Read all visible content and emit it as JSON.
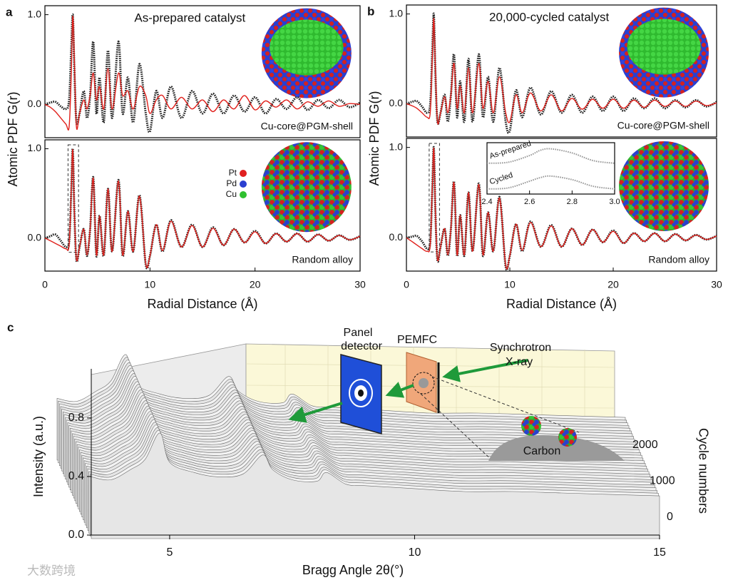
{
  "chart_data": [
    {
      "type": "line",
      "panel": "a",
      "title": "As-prepared catalyst",
      "annotation": "Cu-core@PGM-shell",
      "ylabel": "Atomic PDF G(r)",
      "x": [
        0,
        0.5,
        1,
        1.5,
        2,
        2.3,
        2.5,
        2.65,
        2.8,
        3.0,
        3.3,
        3.7,
        4.0,
        4.3,
        4.6,
        4.9,
        5.2,
        5.6,
        6.0,
        6.4,
        7.0,
        7.4,
        7.9,
        8.4,
        9.0,
        9.6,
        10.0,
        10.6,
        11.2,
        12,
        13,
        14,
        15,
        16,
        17,
        18,
        19,
        20,
        21,
        22,
        23,
        24,
        25,
        26,
        27,
        28,
        29,
        30
      ],
      "series": [
        {
          "color": "#222222",
          "marker": "circle",
          "values": [
            0,
            0.02,
            0.03,
            -0.02,
            -0.05,
            0.05,
            0.6,
            1.0,
            0.4,
            -0.2,
            -0.1,
            0.15,
            -0.15,
            0.1,
            0.7,
            -0.1,
            0.3,
            -0.2,
            0.6,
            -0.15,
            0.7,
            -0.1,
            0.3,
            -0.2,
            0.45,
            -0.1,
            -0.3,
            0.15,
            -0.15,
            0.2,
            -0.15,
            0.15,
            -0.1,
            0.12,
            -0.1,
            0.1,
            -0.08,
            0.08,
            -0.1,
            0.06,
            -0.05,
            0.08,
            -0.06,
            0.05,
            -0.04,
            0.05,
            -0.03,
            0.02
          ]
        },
        {
          "color": "#e0201b",
          "values": [
            0,
            -0.03,
            -0.08,
            -0.15,
            -0.22,
            -0.25,
            0.3,
            0.98,
            0.5,
            -0.25,
            -0.1,
            0.05,
            -0.05,
            0.1,
            0.35,
            0.05,
            0.2,
            -0.05,
            0.4,
            -0.05,
            0.35,
            0.1,
            0.15,
            -0.05,
            0.2,
            0.1,
            -0.1,
            0.05,
            0.1,
            -0.05,
            0.08,
            -0.05,
            0.05,
            -0.08,
            0.05,
            -0.05,
            0.1,
            -0.06,
            0.04,
            -0.03,
            0.05,
            -0.05,
            0.03,
            -0.02,
            0.04,
            -0.02,
            0.01,
            0
          ]
        }
      ],
      "xlim": [
        0,
        30
      ],
      "ylim": [
        -0.37,
        1.1
      ],
      "yticks": [
        {
          "value": 0,
          "label": "0.0"
        },
        {
          "value": 1,
          "label": "1.0"
        }
      ],
      "particle": "core-shell"
    },
    {
      "type": "line",
      "annotation": "Random alloy",
      "xlabel": "Radial Distance (Å)",
      "legend": [
        {
          "name": "Pt",
          "color": "#e02020"
        },
        {
          "name": "Pd",
          "color": "#2a3fd0"
        },
        {
          "name": "Cu",
          "color": "#2fc02f"
        }
      ],
      "x": [
        0,
        0.5,
        1,
        1.5,
        2,
        2.3,
        2.5,
        2.65,
        2.8,
        3.0,
        3.3,
        3.7,
        4.0,
        4.3,
        4.6,
        4.9,
        5.2,
        5.6,
        6.0,
        6.4,
        7.0,
        7.4,
        7.9,
        8.4,
        9.0,
        9.6,
        10.0,
        10.6,
        11.2,
        12,
        13,
        14,
        15,
        16,
        17,
        18,
        19,
        20,
        21,
        22,
        23,
        24,
        25,
        26,
        27,
        28,
        29,
        30
      ],
      "series": [
        {
          "color": "#222222",
          "marker": "circle",
          "values": [
            0,
            0.02,
            0.04,
            -0.03,
            -0.1,
            -0.05,
            0.5,
            1.0,
            0.3,
            -0.25,
            -0.1,
            0.1,
            -0.2,
            0.1,
            0.68,
            -0.2,
            0.25,
            -0.2,
            0.55,
            -0.15,
            0.65,
            -0.2,
            0.3,
            -0.15,
            0.48,
            -0.3,
            -0.2,
            0.15,
            -0.15,
            0.2,
            -0.1,
            0.15,
            -0.1,
            0.12,
            -0.08,
            0.1,
            -0.05,
            0.08,
            -0.06,
            0.05,
            -0.04,
            0.05,
            -0.04,
            0.04,
            -0.03,
            0.03,
            -0.02,
            0.02
          ]
        },
        {
          "color": "#e0201b",
          "values": [
            0,
            -0.03,
            -0.06,
            -0.09,
            -0.12,
            -0.08,
            0.5,
            0.99,
            0.3,
            -0.24,
            -0.1,
            0.1,
            -0.19,
            0.1,
            0.67,
            -0.19,
            0.25,
            -0.19,
            0.55,
            -0.15,
            0.64,
            -0.19,
            0.3,
            -0.15,
            0.47,
            -0.29,
            -0.2,
            0.15,
            -0.14,
            0.19,
            -0.1,
            0.14,
            -0.1,
            0.11,
            -0.08,
            0.1,
            -0.05,
            0.07,
            -0.06,
            0.05,
            -0.04,
            0.05,
            -0.04,
            0.04,
            -0.03,
            0.03,
            -0.02,
            0.02
          ]
        }
      ],
      "xlim": [
        0,
        30
      ],
      "ylim": [
        -0.37,
        1.1
      ],
      "xticks": [
        0,
        10,
        20,
        30
      ],
      "yticks": [
        {
          "value": 0,
          "label": "0.0"
        },
        {
          "value": 1,
          "label": "1.0"
        }
      ],
      "highlight": [
        2.2,
        3.2
      ],
      "particle": "alloy"
    },
    {
      "type": "line",
      "panel": "b",
      "title": "20,000-cycled catalyst",
      "annotation": "Cu-core@PGM-shell",
      "ylabel": "Atomic PDF G(r)",
      "x": [
        0,
        0.5,
        1,
        1.5,
        2,
        2.3,
        2.5,
        2.65,
        2.8,
        3.0,
        3.3,
        3.7,
        4.0,
        4.3,
        4.6,
        4.9,
        5.2,
        5.6,
        6.0,
        6.4,
        7.0,
        7.4,
        7.9,
        8.4,
        9.0,
        9.6,
        10.0,
        10.6,
        11.2,
        12,
        13,
        14,
        15,
        16,
        17,
        18,
        19,
        20,
        21,
        22,
        23,
        24,
        25,
        26,
        27,
        28,
        29,
        30
      ],
      "series": [
        {
          "color": "#222222",
          "marker": "circle",
          "values": [
            0,
            0.02,
            0.03,
            -0.03,
            -0.1,
            0,
            0.6,
            1.0,
            0.35,
            -0.2,
            -0.1,
            0.1,
            -0.2,
            0.1,
            0.55,
            -0.15,
            0.25,
            -0.2,
            0.5,
            -0.2,
            0.55,
            -0.15,
            0.3,
            -0.2,
            0.4,
            -0.2,
            -0.3,
            0.15,
            -0.15,
            0.18,
            -0.12,
            0.14,
            -0.1,
            0.1,
            -0.1,
            0.08,
            -0.08,
            0.08,
            -0.08,
            0.06,
            -0.05,
            0.06,
            -0.05,
            0.04,
            -0.04,
            0.04,
            -0.03,
            0.02
          ]
        },
        {
          "color": "#e0201b",
          "values": [
            0,
            -0.02,
            -0.05,
            -0.1,
            -0.15,
            -0.1,
            0.5,
            0.95,
            0.4,
            -0.2,
            -0.1,
            0.08,
            -0.1,
            0.1,
            0.45,
            -0.05,
            0.2,
            -0.1,
            0.4,
            -0.1,
            0.45,
            -0.05,
            0.25,
            -0.1,
            0.3,
            -0.1,
            -0.2,
            0.1,
            -0.1,
            0.12,
            -0.08,
            0.1,
            -0.08,
            0.06,
            -0.06,
            0.05,
            -0.05,
            0.05,
            -0.05,
            0.04,
            -0.04,
            0.04,
            -0.03,
            0.03,
            -0.03,
            0.03,
            -0.02,
            0.01
          ]
        }
      ],
      "xlim": [
        0,
        30
      ],
      "ylim": [
        -0.37,
        1.1
      ],
      "yticks": [
        {
          "value": 0,
          "label": "0.0"
        },
        {
          "value": 1,
          "label": "1.0"
        }
      ],
      "particle": "core-shell"
    },
    {
      "type": "line",
      "annotation": "Random alloy",
      "xlabel": "Radial Distance (Å)",
      "x": [
        0,
        0.5,
        1,
        1.5,
        2,
        2.3,
        2.5,
        2.65,
        2.8,
        3.0,
        3.3,
        3.7,
        4.0,
        4.3,
        4.6,
        4.9,
        5.2,
        5.6,
        6.0,
        6.4,
        7.0,
        7.4,
        7.9,
        8.4,
        9.0,
        9.6,
        10.0,
        10.6,
        11.2,
        12,
        13,
        14,
        15,
        16,
        17,
        18,
        19,
        20,
        21,
        22,
        23,
        24,
        25,
        26,
        27,
        28,
        29,
        30
      ],
      "series": [
        {
          "color": "#222222",
          "marker": "circle",
          "values": [
            0,
            0.01,
            0.02,
            -0.04,
            -0.12,
            -0.05,
            0.55,
            1.0,
            0.3,
            -0.25,
            -0.1,
            0.1,
            -0.2,
            0.1,
            0.62,
            -0.2,
            0.25,
            -0.2,
            0.5,
            -0.15,
            0.6,
            -0.2,
            0.28,
            -0.15,
            0.45,
            -0.32,
            -0.2,
            0.15,
            -0.15,
            0.18,
            -0.1,
            0.14,
            -0.1,
            0.1,
            -0.08,
            0.09,
            -0.05,
            0.08,
            -0.06,
            0.05,
            -0.04,
            0.05,
            -0.04,
            0.04,
            -0.03,
            0.03,
            -0.02,
            0.02
          ]
        },
        {
          "color": "#e0201b",
          "values": [
            0,
            -0.04,
            -0.08,
            -0.12,
            -0.15,
            -0.08,
            0.55,
            0.99,
            0.3,
            -0.24,
            -0.1,
            0.1,
            -0.19,
            0.1,
            0.61,
            -0.19,
            0.25,
            -0.19,
            0.5,
            -0.15,
            0.59,
            -0.19,
            0.28,
            -0.15,
            0.44,
            -0.31,
            -0.2,
            0.15,
            -0.14,
            0.17,
            -0.1,
            0.13,
            -0.1,
            0.1,
            -0.08,
            0.09,
            -0.05,
            0.07,
            -0.06,
            0.05,
            -0.04,
            0.05,
            -0.04,
            0.04,
            -0.03,
            0.03,
            -0.02,
            0.02
          ]
        }
      ],
      "xlim": [
        0,
        30
      ],
      "ylim": [
        -0.37,
        1.1
      ],
      "xticks": [
        0,
        10,
        20,
        30
      ],
      "yticks": [
        {
          "value": 0,
          "label": "0.0"
        },
        {
          "value": 1,
          "label": "1.0"
        }
      ],
      "highlight": [
        2.2,
        3.2
      ],
      "particle": "alloy"
    },
    {
      "type": "line",
      "inset": true,
      "x": [
        2.4,
        2.5,
        2.6,
        2.65,
        2.7,
        2.8,
        2.9,
        3.0
      ],
      "series": [
        {
          "name": "As-prepared",
          "color": "#9a9a9a",
          "marker": "circle",
          "values": [
            0.6,
            0.62,
            0.75,
            0.85,
            0.88,
            0.8,
            0.65,
            0.6
          ]
        },
        {
          "name": "Cycled",
          "color": "#9a9a9a",
          "marker": "circle",
          "values": [
            0.1,
            0.12,
            0.25,
            0.32,
            0.35,
            0.28,
            0.15,
            0.1
          ]
        }
      ],
      "xlim": [
        2.4,
        3.0
      ],
      "ylim": [
        0,
        1
      ],
      "xticks": [
        2.4,
        2.6,
        2.8,
        {
          "value": 3,
          "label": "3.0"
        }
      ]
    },
    {
      "type": "waterfall",
      "panel": "c",
      "xlabel": "Bragg Angle 2θ(°)",
      "ylabel": "Intensity (a.u.)",
      "zlabel": "Cycle numbers",
      "x": [
        3.4,
        3.8,
        4.2,
        4.5,
        4.8,
        5.0,
        5.5,
        6.0,
        6.5,
        6.9,
        7.1,
        7.5,
        8.0,
        8.2,
        8.6,
        9,
        10,
        11,
        12,
        13,
        14,
        15
      ],
      "values": [
        0.3,
        0.28,
        0.35,
        0.42,
        0.6,
        0.4,
        0.33,
        0.3,
        0.32,
        0.45,
        0.35,
        0.28,
        0.27,
        0.33,
        0.25,
        0.24,
        0.22,
        0.2,
        0.2,
        0.19,
        0.18,
        0.17
      ],
      "xlim": [
        3.4,
        15
      ],
      "ylim": [
        0,
        1
      ],
      "zlim": [
        0,
        2000
      ],
      "xticks": [
        5,
        10,
        15
      ],
      "yticks": [
        {
          "value": 0,
          "label": "0.0"
        },
        {
          "value": 0.4,
          "label": "0.4"
        },
        {
          "value": 0.8,
          "label": "0.8"
        }
      ],
      "zticks": [
        0,
        1000,
        2000
      ],
      "schematic": {
        "detector": [
          "Panel",
          "detector"
        ],
        "cell": "PEMFC",
        "source": [
          "Synchrotron",
          "X-ray"
        ],
        "support": "Carbon"
      }
    }
  ],
  "watermark": "大数跨境"
}
